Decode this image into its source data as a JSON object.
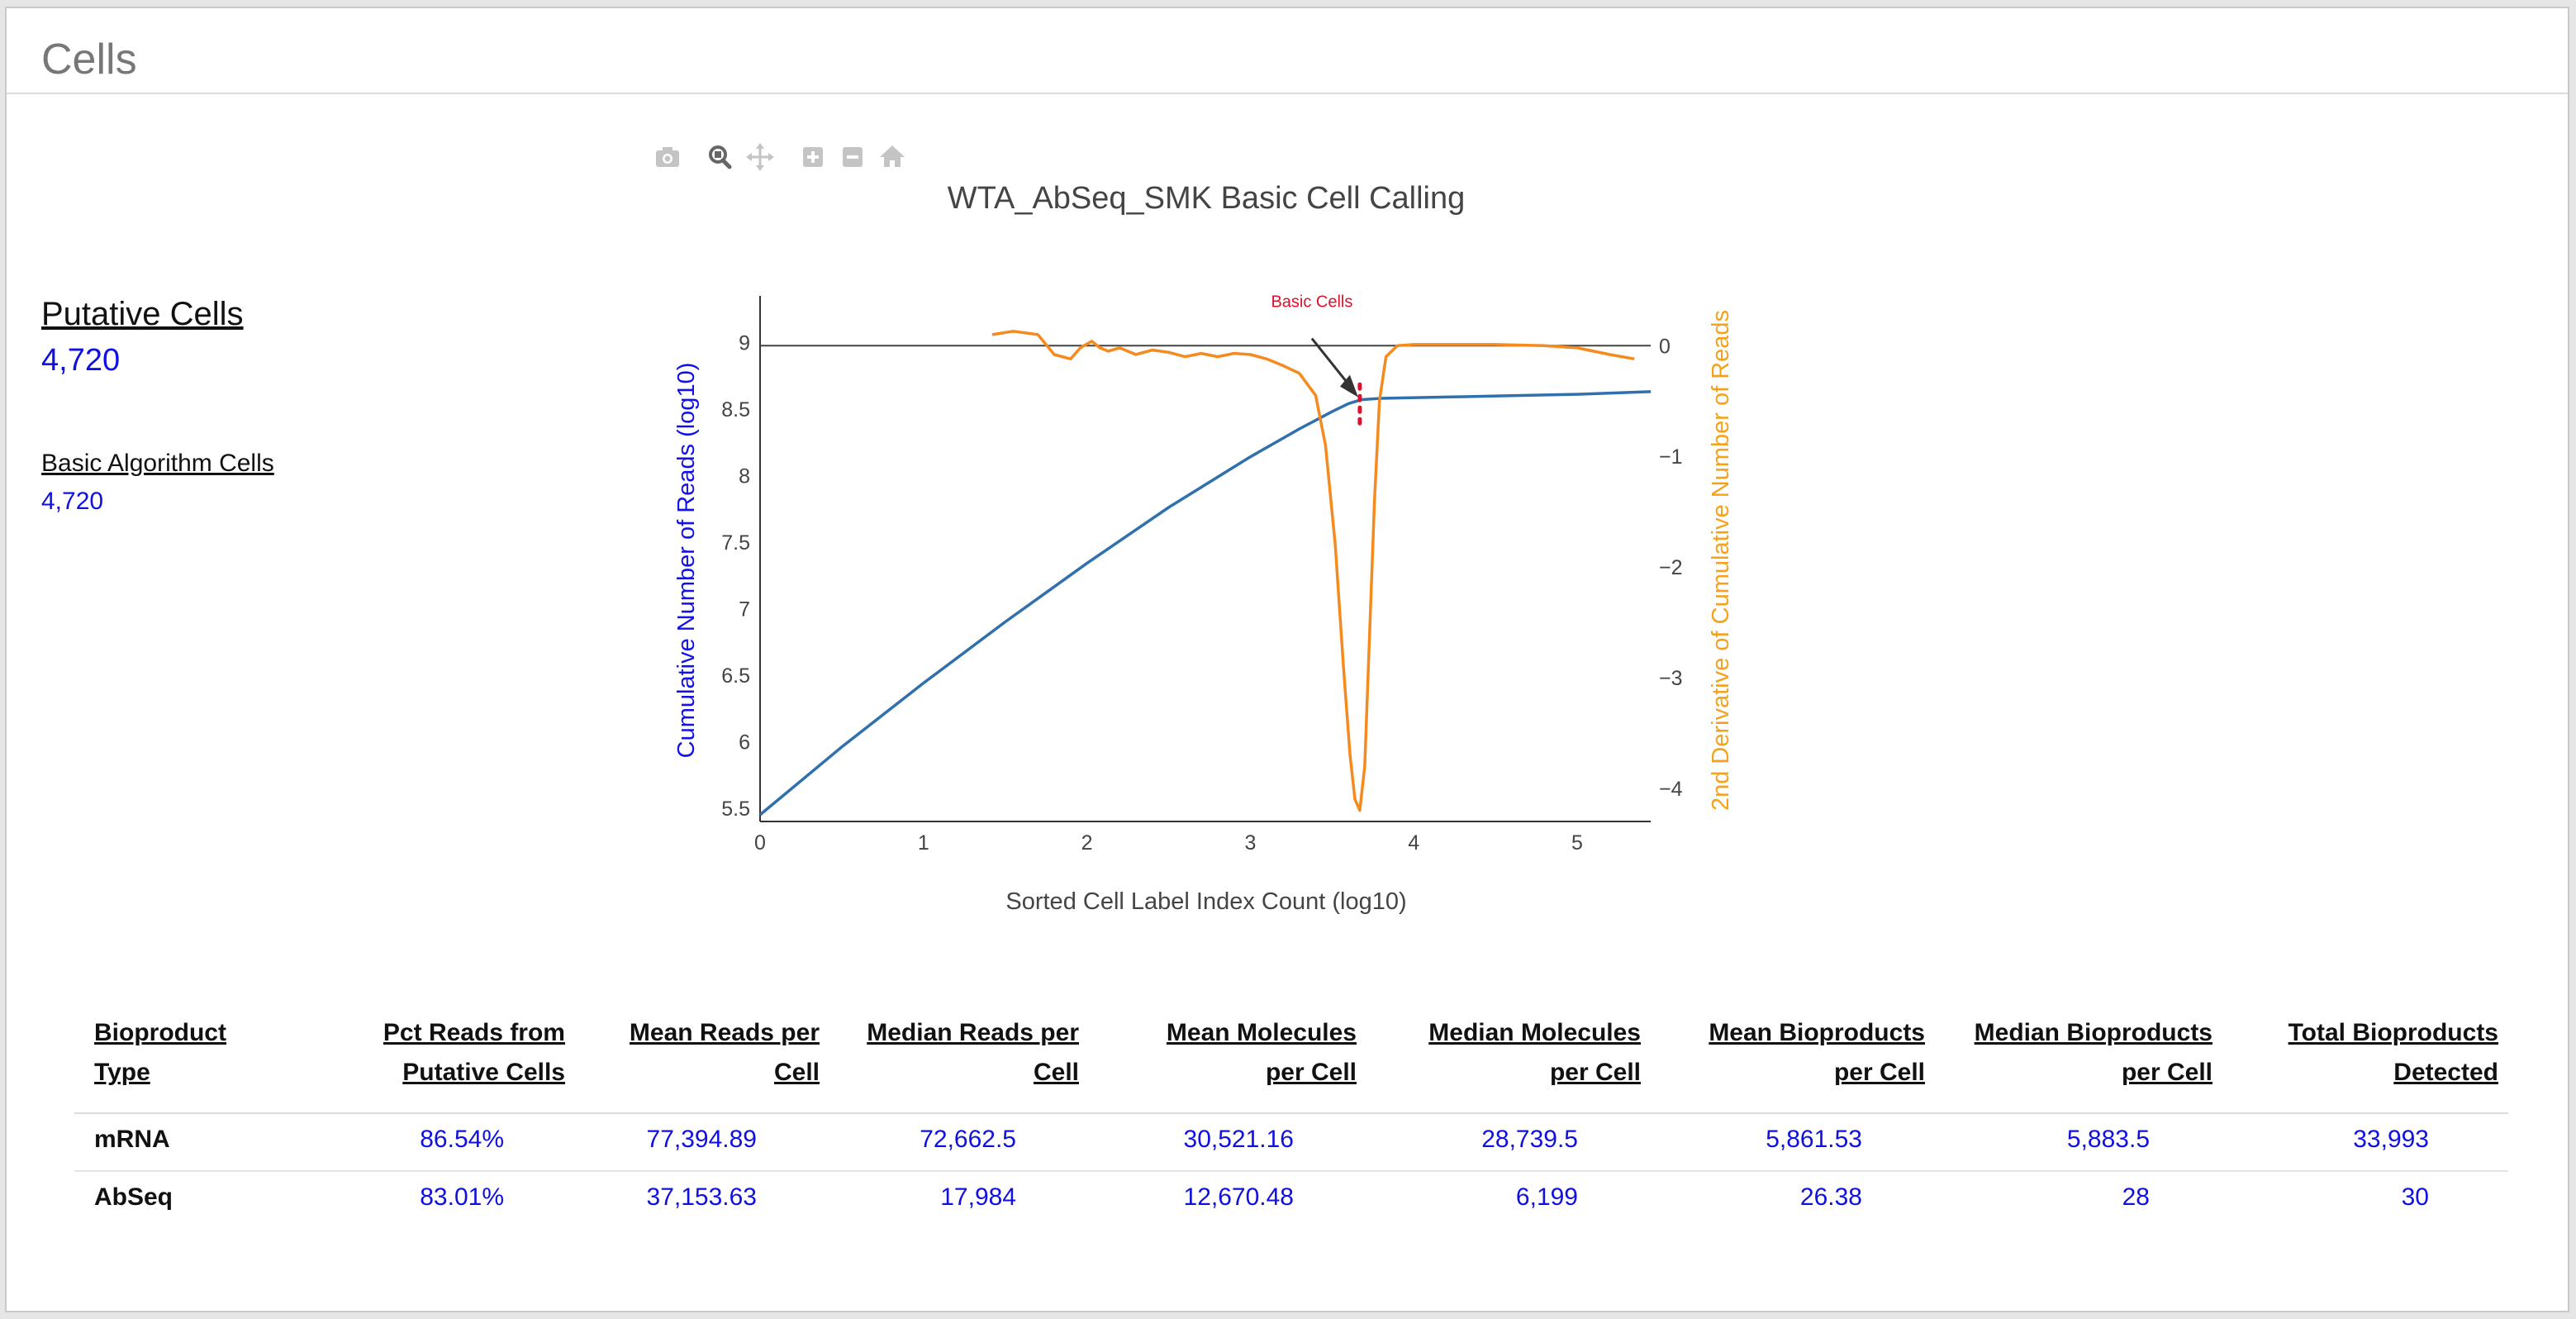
{
  "panel": {
    "title": "Cells"
  },
  "summary": {
    "putative_label": "Putative Cells",
    "putative_value": "4,720",
    "basic_label": "Basic Algorithm Cells",
    "basic_value": "4,720"
  },
  "toolbar": {
    "icons": [
      "camera-icon",
      "zoom-icon",
      "pan-icon",
      "zoom-in-icon",
      "zoom-out-icon",
      "home-icon"
    ]
  },
  "chart_data": {
    "type": "line",
    "title": "WTA_AbSeq_SMK Basic Cell Calling",
    "xlabel": "Sorted Cell Label Index Count (log10)",
    "ylabel": "Cumulative Number of Reads (log10)",
    "y2label": "2nd Derivative of Cumulative Number of Reads",
    "xlim": [
      0,
      5.45
    ],
    "ylim": [
      5.4,
      9.35
    ],
    "y2lim": [
      -4.3,
      0.45
    ],
    "x_ticks": [
      0,
      1,
      2,
      3,
      4,
      5
    ],
    "x_tick_labels": [
      "0",
      "1",
      "2",
      "3",
      "4",
      "5"
    ],
    "y_ticks": [
      5.5,
      6,
      6.5,
      7,
      7.5,
      8,
      8.5,
      9
    ],
    "y_tick_labels": [
      "5.5",
      "6",
      "6.5",
      "7",
      "7.5",
      "8",
      "8.5",
      "9"
    ],
    "y2_ticks": [
      0,
      -1,
      -2,
      -3,
      -4
    ],
    "y2_tick_labels": [
      "0",
      "−1",
      "−2",
      "−3",
      "−4"
    ],
    "colors": {
      "cumulative": "#2f70ad",
      "derivative": "#f58a1f",
      "marker": "#e0102a",
      "ylabel": "#1212e6",
      "y2label": "#f5a11a"
    },
    "series": [
      {
        "name": "Cumulative Number of Reads",
        "axis": "y",
        "color": "#2f70ad",
        "x": [
          0,
          0.5,
          1.0,
          1.5,
          2.0,
          2.5,
          3.0,
          3.3,
          3.5,
          3.6,
          3.68,
          3.8,
          4.2,
          4.6,
          5.0,
          5.45
        ],
        "y": [
          5.45,
          5.96,
          6.44,
          6.9,
          7.34,
          7.76,
          8.14,
          8.35,
          8.48,
          8.54,
          8.57,
          8.58,
          8.59,
          8.6,
          8.61,
          8.63
        ]
      },
      {
        "name": "2nd Derivative",
        "axis": "y2",
        "color": "#f58a1f",
        "x": [
          1.42,
          1.55,
          1.7,
          1.8,
          1.9,
          1.96,
          2.03,
          2.08,
          2.13,
          2.2,
          2.3,
          2.4,
          2.5,
          2.6,
          2.7,
          2.8,
          2.9,
          3.0,
          3.1,
          3.2,
          3.3,
          3.4,
          3.46,
          3.52,
          3.57,
          3.61,
          3.64,
          3.67,
          3.7,
          3.73,
          3.76,
          3.79,
          3.83,
          3.9,
          4.0,
          4.2,
          4.5,
          4.8,
          5.0,
          5.2,
          5.35
        ],
        "y": [
          0.1,
          0.13,
          0.1,
          -0.08,
          -0.12,
          -0.02,
          0.04,
          -0.02,
          -0.05,
          -0.02,
          -0.08,
          -0.04,
          -0.06,
          -0.1,
          -0.07,
          -0.1,
          -0.07,
          -0.08,
          -0.12,
          -0.18,
          -0.25,
          -0.45,
          -0.9,
          -1.8,
          -2.9,
          -3.7,
          -4.1,
          -4.2,
          -3.8,
          -2.6,
          -1.4,
          -0.5,
          -0.1,
          0.0,
          0.01,
          0.01,
          0.01,
          0.0,
          -0.02,
          -0.08,
          -0.12
        ]
      }
    ],
    "cutoff": {
      "x": 3.67,
      "y_start": 8.56,
      "y_end": 8.38
    },
    "annotation": {
      "text": "Basic Cells",
      "x": 3.67,
      "y": 8.57
    },
    "reference_line": {
      "axis": "y2",
      "y": 0
    }
  },
  "table": {
    "headers": [
      [
        "Bioproduct",
        "Type"
      ],
      [
        "Pct Reads from",
        "Putative Cells"
      ],
      [
        "Mean Reads per",
        "Cell"
      ],
      [
        "Median Reads per",
        "Cell"
      ],
      [
        "Mean Molecules",
        "per Cell"
      ],
      [
        "Median Molecules",
        "per Cell"
      ],
      [
        "Mean Bioproducts",
        "per Cell"
      ],
      [
        "Median Bioproducts",
        "per Cell"
      ],
      [
        "Total Bioproducts",
        "Detected"
      ]
    ],
    "rows": [
      {
        "label": "mRNA",
        "values": [
          "86.54%",
          "77,394.89",
          "72,662.5",
          "30,521.16",
          "28,739.5",
          "5,861.53",
          "5,883.5",
          "33,993"
        ]
      },
      {
        "label": "AbSeq",
        "values": [
          "83.01%",
          "37,153.63",
          "17,984",
          "12,670.48",
          "6,199",
          "26.38",
          "28",
          "30"
        ]
      }
    ]
  }
}
